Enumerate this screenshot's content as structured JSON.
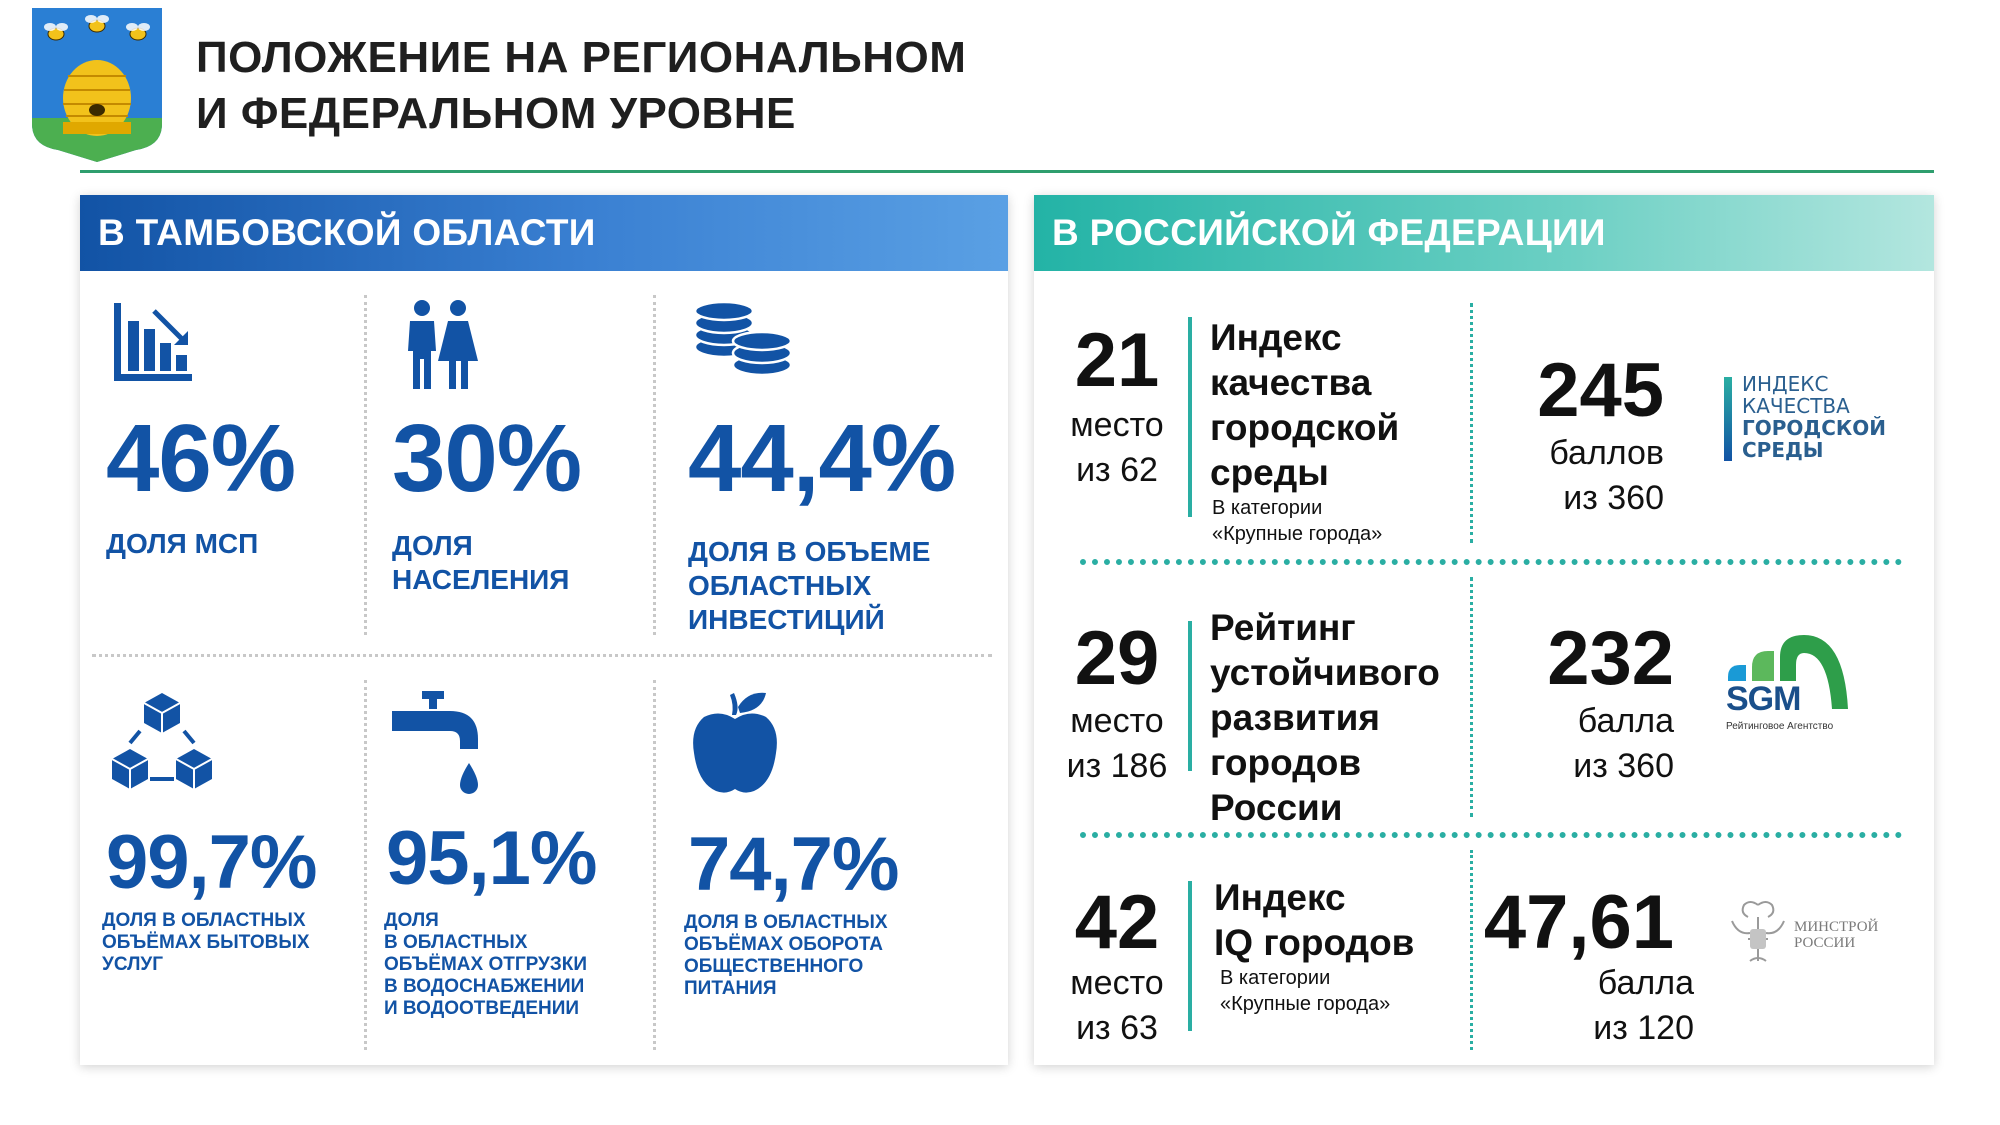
{
  "header": {
    "title_line1": "ПОЛОЖЕНИЕ НА РЕГИОНАЛЬНОМ",
    "title_line2": "И ФЕДЕРАЛЬНОМ УРОВНЕ"
  },
  "colors": {
    "blue": "#1253a5",
    "teal": "#2aaea3",
    "green": "#2e9e6e"
  },
  "left": {
    "heading": "В ТАМБОВСКОЙ ОБЛАСТИ",
    "cells": [
      {
        "icon": "bar-chart-icon",
        "value": "46%",
        "caption": [
          "ДОЛЯ МСП"
        ]
      },
      {
        "icon": "people-icon",
        "value": "30%",
        "caption": [
          "ДОЛЯ",
          "НАСЕЛЕНИЯ"
        ]
      },
      {
        "icon": "coins-icon",
        "value": "44,4%",
        "caption": [
          "ДОЛЯ В ОБЪЕМЕ",
          "ОБЛАСТНЫХ",
          "ИНВЕСТИЦИЙ"
        ]
      },
      {
        "icon": "cubes-icon",
        "value": "99,7%",
        "caption": [
          "ДОЛЯ В ОБЛАСТНЫХ",
          "ОБЪЁМАХ БЫТОВЫХ",
          "УСЛУГ"
        ]
      },
      {
        "icon": "water-tap-icon",
        "value": "95,1%",
        "caption": [
          "ДОЛЯ",
          "В ОБЛАСТНЫХ",
          "ОБЪЁМАХ ОТГРУЗКИ",
          "В ВОДОСНАБЖЕНИИ",
          "И ВОДООТВЕДЕНИИ"
        ]
      },
      {
        "icon": "apple-icon",
        "value": "74,7%",
        "caption": [
          "ДОЛЯ В ОБЛАСТНЫХ",
          "ОБЪЁМАХ ОБОРОТА",
          "ОБЩЕСТВЕННОГО",
          "ПИТАНИЯ"
        ]
      }
    ]
  },
  "right": {
    "heading": "В РОССИЙСКОЙ ФЕДЕРАЦИИ",
    "rows": [
      {
        "rank": "21",
        "rank_word": "место",
        "rank_of": "из 62",
        "name": [
          "Индекс",
          "качества",
          "городской",
          "среды"
        ],
        "category": [
          "В категории",
          "«Крупные города»"
        ],
        "score": "245",
        "score_word": "баллов",
        "score_of": "из 360",
        "logo_text": [
          "ИНДЕКС",
          "КАЧЕСТВА",
          "ГОРОДСКОЙ",
          "СРЕДЫ"
        ]
      },
      {
        "rank": "29",
        "rank_word": "место",
        "rank_of": "из 186",
        "name": [
          "Рейтинг",
          "устойчивого",
          "развития",
          "городов",
          "России"
        ],
        "score": "232",
        "score_word": "балла",
        "score_of": "из 360",
        "logo_text": [
          "SGM",
          "Рейтинговое Агентство"
        ]
      },
      {
        "rank": "42",
        "rank_word": "место",
        "rank_of": "из 63",
        "name": [
          "Индекс",
          "IQ городов"
        ],
        "category": [
          "В категории",
          "«Крупные города»"
        ],
        "score": "47,61",
        "score_word": "балла",
        "score_of": "из 120",
        "logo_text": [
          "МИНСТРОЙ",
          "РОССИИ"
        ]
      }
    ]
  }
}
